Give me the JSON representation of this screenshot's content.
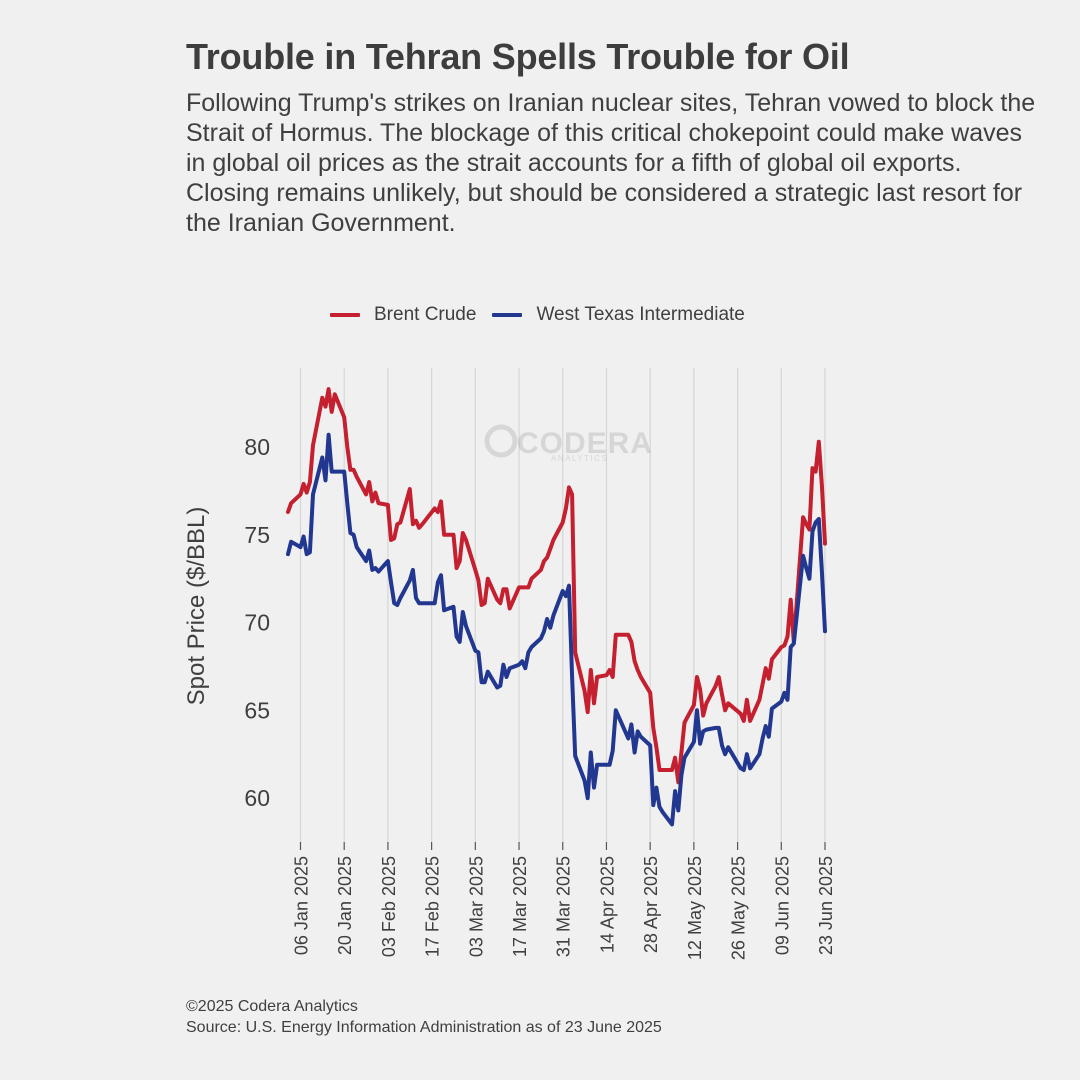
{
  "header": {
    "title": "Trouble in Tehran Spells Trouble for Oil",
    "subtitle": "Following Trump's strikes on Iranian nuclear sites, Tehran vowed to block the Strait of Hormus. The blockage of this critical chokepoint could make waves in global oil prices as the strait accounts for a fifth of global oil exports. Closing remains unlikely, but should be considered a strategic last resort for the Iranian Government."
  },
  "watermark": {
    "brand": "CODERA",
    "sub": "ANALYTICS"
  },
  "footer": {
    "copyright": "©2025 Codera Analytics",
    "source": "Source: U.S. Energy Information Administration as of 23 June 2025"
  },
  "colors": {
    "brent": "#c4202f",
    "wti": "#22378f",
    "grid": "#d6d6d6",
    "background": "#f0f0f0"
  },
  "chart_data": {
    "type": "line",
    "title": "Trouble in Tehran Spells Trouble for Oil",
    "xlabel": "",
    "ylabel": "Spot Price ($/BBL)",
    "ylim": [
      57.5,
      84.5
    ],
    "yticks": [
      60,
      65,
      70,
      75,
      80
    ],
    "xlim": [
      "2025-01-02",
      "2025-06-23"
    ],
    "xticks": [
      "2025-01-06",
      "2025-01-20",
      "2025-02-03",
      "2025-02-17",
      "2025-03-03",
      "2025-03-17",
      "2025-03-31",
      "2025-04-14",
      "2025-04-28",
      "2025-05-12",
      "2025-05-26",
      "2025-06-09",
      "2025-06-23"
    ],
    "xtick_labels": [
      "06 Jan 2025",
      "20 Jan 2025",
      "03 Feb 2025",
      "17 Feb 2025",
      "03 Mar 2025",
      "17 Mar 2025",
      "31 Mar 2025",
      "14 Apr 2025",
      "28 Apr 2025",
      "12 May 2025",
      "26 May 2025",
      "09 Jun 2025",
      "23 Jun 2025"
    ],
    "grid": "vertical",
    "legend": "top",
    "series": [
      {
        "name": "Brent Crude",
        "color": "#c4202f",
        "points": [
          [
            "2025-01-02",
            76.3
          ],
          [
            "2025-01-03",
            76.8
          ],
          [
            "2025-01-06",
            77.3
          ],
          [
            "2025-01-07",
            77.9
          ],
          [
            "2025-01-08",
            77.4
          ],
          [
            "2025-01-09",
            78.0
          ],
          [
            "2025-01-10",
            80.1
          ],
          [
            "2025-01-13",
            82.8
          ],
          [
            "2025-01-14",
            82.3
          ],
          [
            "2025-01-15",
            83.3
          ],
          [
            "2025-01-16",
            82.0
          ],
          [
            "2025-01-17",
            83.0
          ],
          [
            "2025-01-20",
            81.7
          ],
          [
            "2025-01-21",
            80.0
          ],
          [
            "2025-01-22",
            78.7
          ],
          [
            "2025-01-23",
            78.7
          ],
          [
            "2025-01-24",
            78.3
          ],
          [
            "2025-01-27",
            77.3
          ],
          [
            "2025-01-28",
            78.0
          ],
          [
            "2025-01-29",
            76.9
          ],
          [
            "2025-01-30",
            77.4
          ],
          [
            "2025-01-31",
            76.8
          ],
          [
            "2025-02-03",
            76.7
          ],
          [
            "2025-02-04",
            74.7
          ],
          [
            "2025-02-05",
            74.8
          ],
          [
            "2025-02-06",
            75.6
          ],
          [
            "2025-02-07",
            75.7
          ],
          [
            "2025-02-10",
            77.6
          ],
          [
            "2025-02-11",
            75.6
          ],
          [
            "2025-02-12",
            75.8
          ],
          [
            "2025-02-13",
            75.4
          ],
          [
            "2025-02-14",
            75.6
          ],
          [
            "2025-02-18",
            76.5
          ],
          [
            "2025-02-19",
            76.3
          ],
          [
            "2025-02-20",
            76.9
          ],
          [
            "2025-02-21",
            75.0
          ],
          [
            "2025-02-24",
            75.0
          ],
          [
            "2025-02-25",
            73.1
          ],
          [
            "2025-02-26",
            73.5
          ],
          [
            "2025-02-27",
            75.1
          ],
          [
            "2025-02-28",
            74.7
          ],
          [
            "2025-03-03",
            73.0
          ],
          [
            "2025-03-04",
            72.4
          ],
          [
            "2025-03-05",
            71.0
          ],
          [
            "2025-03-06",
            71.1
          ],
          [
            "2025-03-07",
            72.5
          ],
          [
            "2025-03-10",
            71.3
          ],
          [
            "2025-03-11",
            71.1
          ],
          [
            "2025-03-12",
            71.9
          ],
          [
            "2025-03-13",
            71.9
          ],
          [
            "2025-03-14",
            70.8
          ],
          [
            "2025-03-17",
            72.0
          ],
          [
            "2025-03-18",
            72.0
          ],
          [
            "2025-03-19",
            72.0
          ],
          [
            "2025-03-20",
            72.0
          ],
          [
            "2025-03-21",
            72.5
          ],
          [
            "2025-03-24",
            73.0
          ],
          [
            "2025-03-25",
            73.5
          ],
          [
            "2025-03-26",
            73.7
          ],
          [
            "2025-03-27",
            74.2
          ],
          [
            "2025-03-28",
            74.7
          ],
          [
            "2025-03-31",
            75.7
          ],
          [
            "2025-04-01",
            76.5
          ],
          [
            "2025-04-02",
            77.7
          ],
          [
            "2025-04-03",
            77.3
          ],
          [
            "2025-04-04",
            68.3
          ],
          [
            "2025-04-07",
            66.1
          ],
          [
            "2025-04-08",
            64.9
          ],
          [
            "2025-04-09",
            67.3
          ],
          [
            "2025-04-10",
            65.4
          ],
          [
            "2025-04-11",
            66.9
          ],
          [
            "2025-04-14",
            67.0
          ],
          [
            "2025-04-15",
            67.3
          ],
          [
            "2025-04-16",
            66.9
          ],
          [
            "2025-04-17",
            69.3
          ],
          [
            "2025-04-21",
            69.3
          ],
          [
            "2025-04-22",
            68.9
          ],
          [
            "2025-04-23",
            67.8
          ],
          [
            "2025-04-24",
            67.3
          ],
          [
            "2025-04-25",
            66.9
          ],
          [
            "2025-04-28",
            66.0
          ],
          [
            "2025-04-29",
            64.0
          ],
          [
            "2025-04-30",
            62.9
          ],
          [
            "2025-05-01",
            61.6
          ],
          [
            "2025-05-02",
            61.6
          ],
          [
            "2025-05-05",
            61.6
          ],
          [
            "2025-05-06",
            62.3
          ],
          [
            "2025-05-07",
            60.9
          ],
          [
            "2025-05-08",
            62.6
          ],
          [
            "2025-05-09",
            64.3
          ],
          [
            "2025-05-12",
            65.3
          ],
          [
            "2025-05-13",
            66.9
          ],
          [
            "2025-05-14",
            66.2
          ],
          [
            "2025-05-15",
            64.7
          ],
          [
            "2025-05-16",
            65.4
          ],
          [
            "2025-05-19",
            66.4
          ],
          [
            "2025-05-20",
            66.9
          ],
          [
            "2025-05-21",
            65.9
          ],
          [
            "2025-05-22",
            65.0
          ],
          [
            "2025-05-23",
            65.4
          ],
          [
            "2025-05-27",
            64.8
          ],
          [
            "2025-05-28",
            64.4
          ],
          [
            "2025-05-29",
            65.6
          ],
          [
            "2025-05-30",
            64.4
          ],
          [
            "2025-06-02",
            65.6
          ],
          [
            "2025-06-03",
            66.5
          ],
          [
            "2025-06-04",
            67.4
          ],
          [
            "2025-06-05",
            66.8
          ],
          [
            "2025-06-06",
            67.9
          ],
          [
            "2025-06-09",
            68.6
          ],
          [
            "2025-06-10",
            68.7
          ],
          [
            "2025-06-11",
            69.2
          ],
          [
            "2025-06-12",
            71.3
          ],
          [
            "2025-06-13",
            68.9
          ],
          [
            "2025-06-16",
            76.0
          ],
          [
            "2025-06-17",
            75.6
          ],
          [
            "2025-06-18",
            75.3
          ],
          [
            "2025-06-19",
            78.8
          ],
          [
            "2025-06-20",
            78.6
          ],
          [
            "2025-06-21",
            80.3
          ],
          [
            "2025-06-22",
            77.8
          ],
          [
            "2025-06-23",
            74.5
          ]
        ]
      },
      {
        "name": "West Texas Intermediate",
        "color": "#22378f",
        "points": [
          [
            "2025-01-02",
            73.9
          ],
          [
            "2025-01-03",
            74.6
          ],
          [
            "2025-01-06",
            74.3
          ],
          [
            "2025-01-07",
            74.9
          ],
          [
            "2025-01-08",
            73.9
          ],
          [
            "2025-01-09",
            74.0
          ],
          [
            "2025-01-10",
            77.3
          ],
          [
            "2025-01-13",
            79.4
          ],
          [
            "2025-01-14",
            78.1
          ],
          [
            "2025-01-15",
            80.7
          ],
          [
            "2025-01-16",
            78.6
          ],
          [
            "2025-01-17",
            78.6
          ],
          [
            "2025-01-20",
            78.6
          ],
          [
            "2025-01-21",
            76.8
          ],
          [
            "2025-01-22",
            75.1
          ],
          [
            "2025-01-23",
            75.0
          ],
          [
            "2025-01-24",
            74.3
          ],
          [
            "2025-01-27",
            73.5
          ],
          [
            "2025-01-28",
            74.1
          ],
          [
            "2025-01-29",
            73.0
          ],
          [
            "2025-01-30",
            73.1
          ],
          [
            "2025-01-31",
            72.9
          ],
          [
            "2025-02-03",
            73.5
          ],
          [
            "2025-02-04",
            72.3
          ],
          [
            "2025-02-05",
            71.1
          ],
          [
            "2025-02-06",
            71.0
          ],
          [
            "2025-02-07",
            71.4
          ],
          [
            "2025-02-10",
            72.4
          ],
          [
            "2025-02-11",
            73.0
          ],
          [
            "2025-02-12",
            71.4
          ],
          [
            "2025-02-13",
            71.1
          ],
          [
            "2025-02-14",
            71.1
          ],
          [
            "2025-02-18",
            71.1
          ],
          [
            "2025-02-19",
            72.3
          ],
          [
            "2025-02-20",
            72.7
          ],
          [
            "2025-02-21",
            70.7
          ],
          [
            "2025-02-24",
            70.9
          ],
          [
            "2025-02-25",
            69.2
          ],
          [
            "2025-02-26",
            68.9
          ],
          [
            "2025-02-27",
            70.6
          ],
          [
            "2025-02-28",
            69.8
          ],
          [
            "2025-03-03",
            68.4
          ],
          [
            "2025-03-04",
            68.3
          ],
          [
            "2025-03-05",
            66.6
          ],
          [
            "2025-03-06",
            66.6
          ],
          [
            "2025-03-07",
            67.2
          ],
          [
            "2025-03-10",
            66.3
          ],
          [
            "2025-03-11",
            66.4
          ],
          [
            "2025-03-12",
            67.6
          ],
          [
            "2025-03-13",
            66.9
          ],
          [
            "2025-03-14",
            67.4
          ],
          [
            "2025-03-17",
            67.6
          ],
          [
            "2025-03-18",
            67.8
          ],
          [
            "2025-03-19",
            67.4
          ],
          [
            "2025-03-20",
            68.3
          ],
          [
            "2025-03-21",
            68.6
          ],
          [
            "2025-03-24",
            69.1
          ],
          [
            "2025-03-25",
            69.5
          ],
          [
            "2025-03-26",
            70.2
          ],
          [
            "2025-03-27",
            69.7
          ],
          [
            "2025-03-28",
            70.4
          ],
          [
            "2025-03-31",
            71.8
          ],
          [
            "2025-04-01",
            71.5
          ],
          [
            "2025-04-02",
            72.1
          ],
          [
            "2025-04-03",
            66.9
          ],
          [
            "2025-04-04",
            62.4
          ],
          [
            "2025-04-07",
            61.0
          ],
          [
            "2025-04-08",
            60.0
          ],
          [
            "2025-04-09",
            62.6
          ],
          [
            "2025-04-10",
            60.6
          ],
          [
            "2025-04-11",
            61.9
          ],
          [
            "2025-04-14",
            61.9
          ],
          [
            "2025-04-15",
            61.9
          ],
          [
            "2025-04-16",
            62.7
          ],
          [
            "2025-04-17",
            65.0
          ],
          [
            "2025-04-21",
            63.4
          ],
          [
            "2025-04-22",
            64.2
          ],
          [
            "2025-04-23",
            62.6
          ],
          [
            "2025-04-24",
            63.8
          ],
          [
            "2025-04-25",
            63.5
          ],
          [
            "2025-04-28",
            63.0
          ],
          [
            "2025-04-29",
            59.6
          ],
          [
            "2025-04-30",
            60.6
          ],
          [
            "2025-05-01",
            59.5
          ],
          [
            "2025-05-02",
            59.2
          ],
          [
            "2025-05-05",
            58.5
          ],
          [
            "2025-05-06",
            60.4
          ],
          [
            "2025-05-07",
            59.3
          ],
          [
            "2025-05-08",
            61.3
          ],
          [
            "2025-05-09",
            62.3
          ],
          [
            "2025-05-12",
            63.2
          ],
          [
            "2025-05-13",
            65.0
          ],
          [
            "2025-05-14",
            63.1
          ],
          [
            "2025-05-15",
            63.8
          ],
          [
            "2025-05-16",
            63.9
          ],
          [
            "2025-05-19",
            64.0
          ],
          [
            "2025-05-20",
            64.0
          ],
          [
            "2025-05-21",
            63.0
          ],
          [
            "2025-05-22",
            62.5
          ],
          [
            "2025-05-23",
            62.9
          ],
          [
            "2025-05-27",
            61.7
          ],
          [
            "2025-05-28",
            61.6
          ],
          [
            "2025-05-29",
            62.5
          ],
          [
            "2025-05-30",
            61.7
          ],
          [
            "2025-06-02",
            62.5
          ],
          [
            "2025-06-03",
            63.4
          ],
          [
            "2025-06-04",
            64.1
          ],
          [
            "2025-06-05",
            63.5
          ],
          [
            "2025-06-06",
            65.1
          ],
          [
            "2025-06-09",
            65.5
          ],
          [
            "2025-06-10",
            66.0
          ],
          [
            "2025-06-11",
            65.6
          ],
          [
            "2025-06-12",
            68.6
          ],
          [
            "2025-06-13",
            68.8
          ],
          [
            "2025-06-16",
            73.8
          ],
          [
            "2025-06-17",
            73.1
          ],
          [
            "2025-06-18",
            72.5
          ],
          [
            "2025-06-19",
            75.2
          ],
          [
            "2025-06-20",
            75.7
          ],
          [
            "2025-06-21",
            75.9
          ],
          [
            "2025-06-22",
            72.9
          ],
          [
            "2025-06-23",
            69.5
          ]
        ]
      }
    ]
  }
}
